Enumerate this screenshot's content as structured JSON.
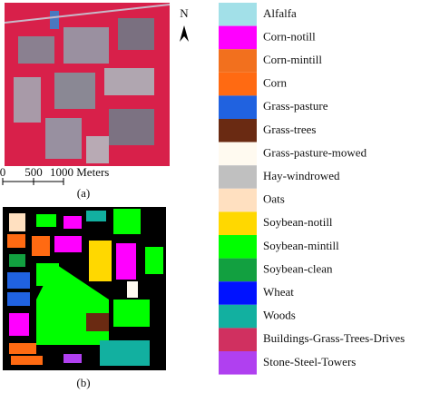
{
  "north_label": "N",
  "scale_bar": {
    "labels": [
      "0",
      "500",
      "1000 Meters"
    ]
  },
  "captions": {
    "a": "(a)",
    "b": "(b)"
  },
  "legend": {
    "items": [
      {
        "name": "Alfalfa",
        "color": "#a2e0e8"
      },
      {
        "name": "Corn-notill",
        "color": "#ff00ff"
      },
      {
        "name": "Corn-mintill",
        "color": "#f2701e"
      },
      {
        "name": "Corn",
        "color": "#ff6a12"
      },
      {
        "name": "Grass-pasture",
        "color": "#2062e0"
      },
      {
        "name": "Grass-trees",
        "color": "#6a2a12"
      },
      {
        "name": "Grass-pasture-mowed",
        "color": "#fffaf0"
      },
      {
        "name": "Hay-windrowed",
        "color": "#c0c0c0"
      },
      {
        "name": "Oats",
        "color": "#ffe0c0"
      },
      {
        "name": "Soybean-notill",
        "color": "#ffd800"
      },
      {
        "name": "Soybean-mintill",
        "color": "#00ff00"
      },
      {
        "name": "Soybean-clean",
        "color": "#12a040"
      },
      {
        "name": "Wheat",
        "color": "#0012ff"
      },
      {
        "name": "Woods",
        "color": "#12b0a0"
      },
      {
        "name": "Buildings-Grass-Trees-Drives",
        "color": "#d03060"
      },
      {
        "name": "Stone-Steel-Towers",
        "color": "#b040f0"
      }
    ]
  }
}
